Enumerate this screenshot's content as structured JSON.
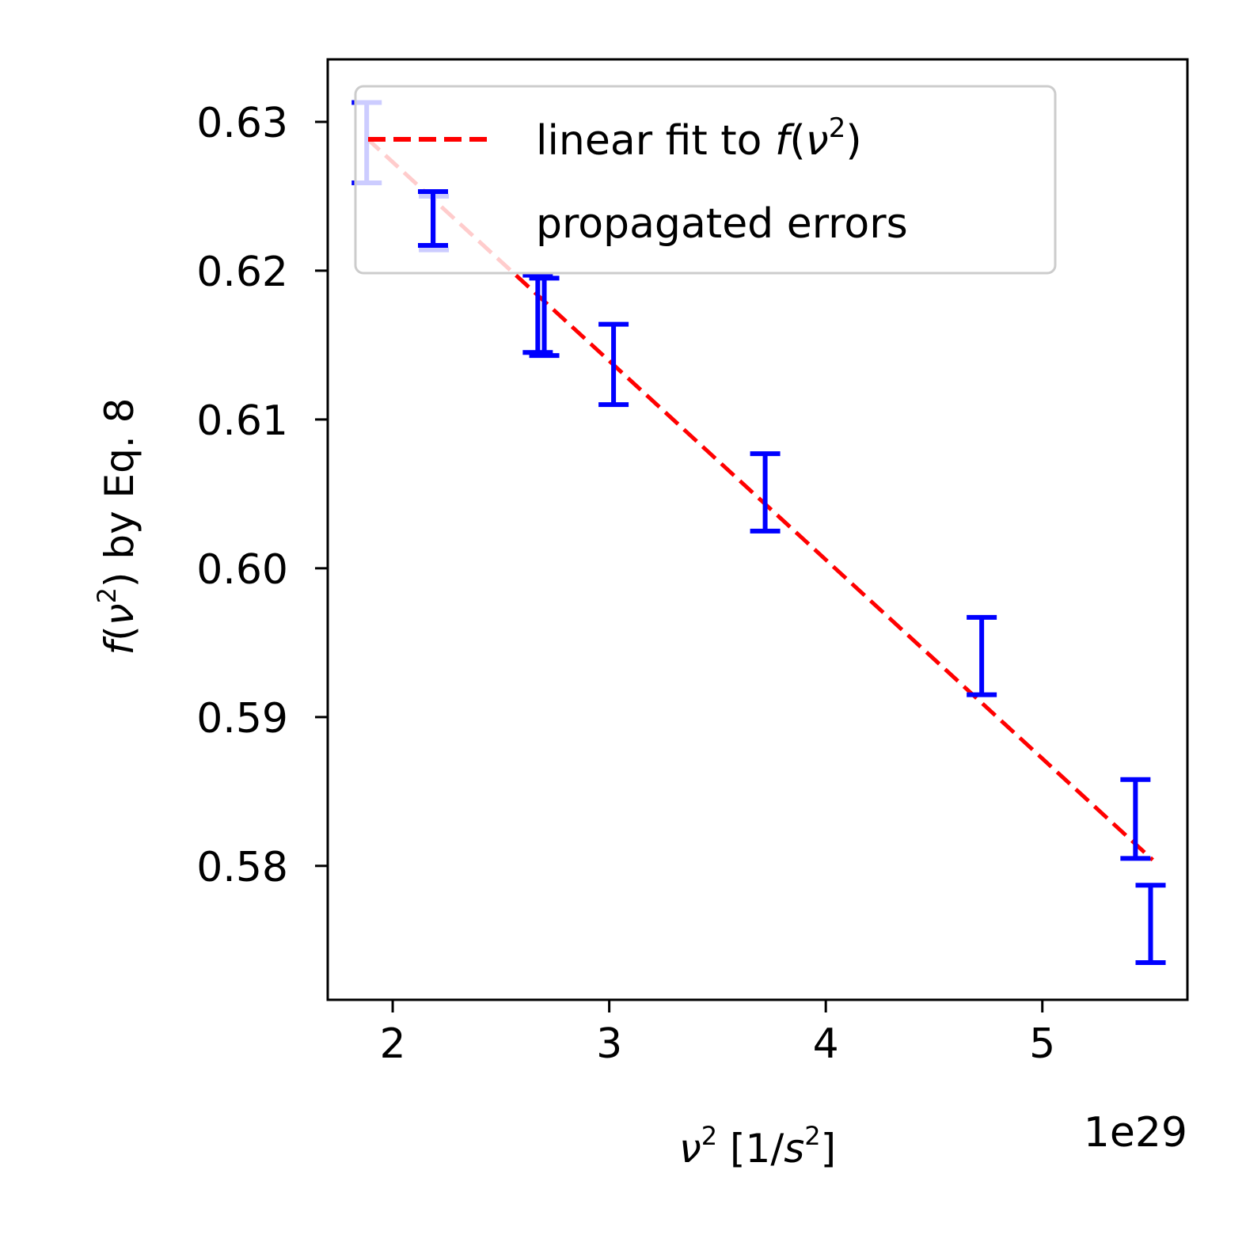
{
  "chart_data": {
    "type": "scatter",
    "xlabel": {
      "pre": "",
      "italic": "ν",
      "sup": "2",
      "post": " [1/",
      "italic2": "s",
      "sup2": "2",
      "post2": "]"
    },
    "ylabel": {
      "italic": "f",
      "pre": "(",
      "italic2": "ν",
      "sup": "2",
      "post": ") by Eq. 8"
    },
    "x_offset_text": "1e29",
    "x_scale": 1e+29,
    "xlim": [
      1.7,
      5.67
    ],
    "ylim": [
      0.571,
      0.6342
    ],
    "xticks": [
      2,
      3,
      4,
      5
    ],
    "xtick_labels": [
      "2",
      "3",
      "4",
      "5"
    ],
    "yticks": [
      0.58,
      0.59,
      0.6,
      0.61,
      0.62,
      0.63
    ],
    "ytick_labels": [
      "0.58",
      "0.59",
      "0.60",
      "0.61",
      "0.62",
      "0.63"
    ],
    "grid": false,
    "legend": {
      "placement": "upper-left",
      "fit_label": {
        "pre": "linear fit to ",
        "italic": "f",
        "mid": "(",
        "italic2": "ν",
        "sup": "2",
        "post": ")"
      },
      "errors_label": "propagated errors"
    },
    "fit_line": {
      "x": [
        1.88,
        5.51
      ],
      "y": [
        0.6289,
        0.5804
      ],
      "color": "#ff0000",
      "style": "dashed"
    },
    "series": [
      {
        "color": "#0000ff",
        "x": [
          1.88,
          2.19,
          2.67,
          2.7,
          3.02,
          3.72,
          4.72,
          5.43,
          5.5
        ],
        "y_low": [
          0.6259,
          0.6214,
          0.6145,
          0.6143,
          0.611,
          0.6025,
          0.5915,
          0.5805,
          0.5735
        ],
        "y_high": [
          0.6313,
          0.625,
          0.6197,
          0.6195,
          0.6164,
          0.6077,
          0.5967,
          0.5858,
          0.5787
        ]
      }
    ]
  }
}
